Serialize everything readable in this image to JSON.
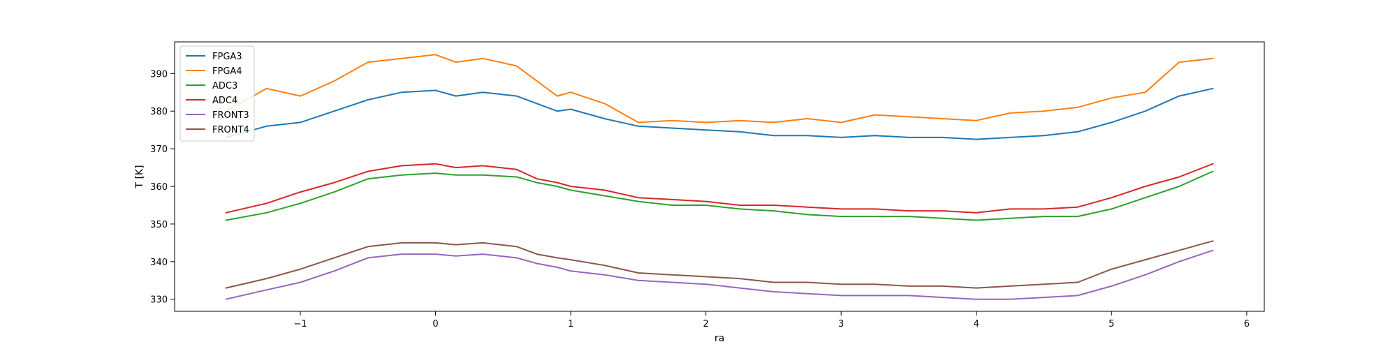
{
  "chart_data": {
    "type": "line",
    "title": "",
    "xlabel": "ra",
    "ylabel": "T [K]",
    "xlim": [
      -1.93,
      6.13
    ],
    "ylim": [
      326.8,
      398.4
    ],
    "xticks": [
      -1,
      0,
      1,
      2,
      3,
      4,
      5,
      6
    ],
    "yticks": [
      330,
      340,
      350,
      360,
      370,
      380,
      390
    ],
    "grid": false,
    "legend_position": "upper-left",
    "x": [
      -1.55,
      -1.25,
      -1.0,
      -0.75,
      -0.5,
      -0.25,
      0.0,
      0.15,
      0.35,
      0.6,
      0.75,
      0.9,
      1.0,
      1.25,
      1.5,
      1.75,
      2.0,
      2.25,
      2.5,
      2.75,
      3.0,
      3.25,
      3.5,
      3.75,
      4.0,
      4.25,
      4.5,
      4.75,
      5.0,
      5.25,
      5.5,
      5.75
    ],
    "series": [
      {
        "name": "FPGA3",
        "color": "#1f77b4",
        "values": [
          373,
          376,
          377,
          380,
          383,
          385,
          385.5,
          384,
          385,
          384,
          382,
          380,
          380.5,
          378,
          376,
          375.5,
          375,
          374.5,
          373.5,
          373.5,
          373,
          373.5,
          373,
          373,
          372.5,
          373,
          373.5,
          374.5,
          377,
          380,
          384,
          386
        ]
      },
      {
        "name": "FPGA4",
        "color": "#ff7f0e",
        "values": [
          380,
          386,
          384,
          388,
          393,
          394,
          395,
          393,
          394,
          392,
          388,
          384,
          385,
          382,
          377,
          377.5,
          377,
          377.5,
          377,
          378,
          377,
          379,
          378.5,
          378,
          377.5,
          379.5,
          380,
          381,
          383.5,
          385,
          393,
          394
        ]
      },
      {
        "name": "ADC3",
        "color": "#2ca02c",
        "values": [
          351,
          353,
          355.5,
          358.5,
          362,
          363,
          363.5,
          363,
          363,
          362.5,
          361,
          360,
          359,
          357.5,
          356,
          355,
          355,
          354,
          353.5,
          352.5,
          352,
          352,
          352,
          351.5,
          351,
          351.5,
          352,
          352,
          354,
          357,
          360,
          364
        ]
      },
      {
        "name": "ADC4",
        "color": "#d62728",
        "values": [
          353,
          355.5,
          358.5,
          361,
          364,
          365.5,
          366,
          365,
          365.5,
          364.5,
          362,
          361,
          360,
          359,
          357,
          356.5,
          356,
          355,
          355,
          354.5,
          354,
          354,
          353.5,
          353.5,
          353,
          354,
          354,
          354.5,
          357,
          360,
          362.5,
          366
        ]
      },
      {
        "name": "FRONT3",
        "color": "#9467bd",
        "values": [
          330,
          332.5,
          334.5,
          337.5,
          341,
          342,
          342,
          341.5,
          342,
          341,
          339.5,
          338.5,
          337.5,
          336.5,
          335,
          334.5,
          334,
          333,
          332,
          331.5,
          331,
          331,
          331,
          330.5,
          330,
          330,
          330.5,
          331,
          333.5,
          336.5,
          340,
          343
        ]
      },
      {
        "name": "FRONT4",
        "color": "#8c564b",
        "values": [
          333,
          335.5,
          338,
          341,
          344,
          345,
          345,
          344.5,
          345,
          344,
          342,
          341,
          340.5,
          339,
          337,
          336.5,
          336,
          335.5,
          334.5,
          334.5,
          334,
          334,
          333.5,
          333.5,
          333,
          333.5,
          334,
          334.5,
          338,
          340.5,
          343,
          345.5
        ]
      }
    ]
  }
}
